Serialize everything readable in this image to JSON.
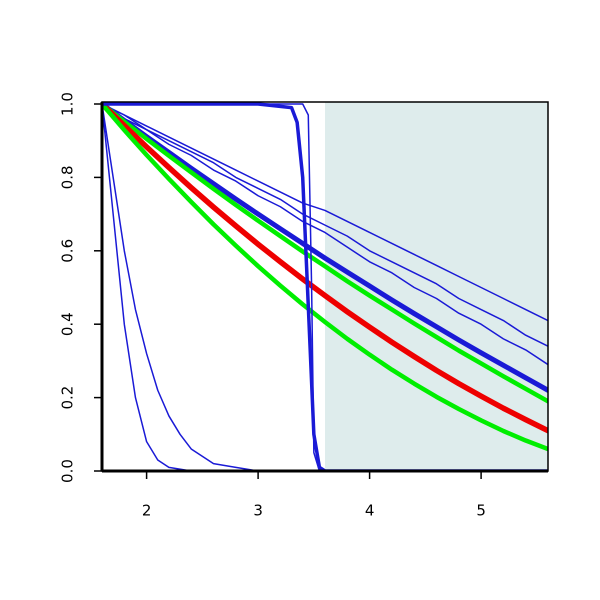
{
  "chart_data": {
    "type": "line",
    "x": [
      1.6,
      1.8,
      2.0,
      2.2,
      2.4,
      2.6,
      2.8,
      3.0,
      3.2,
      3.4,
      3.6,
      3.8,
      4.0,
      4.2,
      4.4,
      4.6,
      4.8,
      5.0,
      5.2,
      5.4,
      5.6
    ],
    "xlim": [
      1.6,
      5.6
    ],
    "xticks": [
      2,
      3,
      4,
      5
    ],
    "ylim": [
      0,
      1
    ],
    "yticks": [
      {
        "value": 0,
        "label": "0.0"
      },
      0.2,
      0.4,
      0.6,
      0.8,
      {
        "value": 1,
        "label": "1.0"
      }
    ],
    "shaded_region": {
      "xlim": [
        3.6,
        5.6
      ],
      "color": "#deecec"
    },
    "series": [
      {
        "color": "#1a1ad6",
        "width": 1.5,
        "values": [
          1,
          0.97,
          0.94,
          0.91,
          0.88,
          0.85,
          0.82,
          0.79,
          0.76,
          0.73,
          0.71,
          0.68,
          0.65,
          0.62,
          0.59,
          0.56,
          0.53,
          0.5,
          0.47,
          0.44,
          0.41
        ]
      },
      {
        "color": "#1a1ad6",
        "width": 1.5,
        "values": [
          1,
          0.97,
          0.93,
          0.9,
          0.87,
          0.84,
          0.8,
          0.77,
          0.74,
          0.7,
          0.67,
          0.64,
          0.6,
          0.57,
          0.54,
          0.51,
          0.47,
          0.44,
          0.41,
          0.37,
          0.34
        ]
      },
      {
        "color": "#1a1ad6",
        "width": 1.5,
        "values": [
          1,
          0.96,
          0.93,
          0.89,
          0.86,
          0.82,
          0.79,
          0.75,
          0.72,
          0.68,
          0.65,
          0.61,
          0.57,
          0.54,
          0.5,
          0.47,
          0.43,
          0.4,
          0.36,
          0.33,
          0.29
        ]
      },
      {
        "color": "#1a1ad6",
        "width": 5,
        "values": [
          1,
          0.955,
          0.911,
          0.868,
          0.825,
          0.783,
          0.741,
          0.7,
          0.66,
          0.62,
          0.58,
          0.542,
          0.504,
          0.466,
          0.429,
          0.393,
          0.357,
          0.322,
          0.288,
          0.254,
          0.22
        ]
      },
      {
        "color": "#00ee00",
        "width": 4.5,
        "values": [
          1,
          0.952,
          0.905,
          0.859,
          0.814,
          0.769,
          0.725,
          0.682,
          0.64,
          0.598,
          0.558,
          0.517,
          0.478,
          0.44,
          0.402,
          0.365,
          0.328,
          0.293,
          0.258,
          0.224,
          0.19
        ]
      },
      {
        "color": "#ee0000",
        "width": 5.5,
        "values": [
          1,
          0.941,
          0.883,
          0.827,
          0.772,
          0.719,
          0.668,
          0.618,
          0.57,
          0.523,
          0.478,
          0.434,
          0.392,
          0.351,
          0.312,
          0.274,
          0.238,
          0.204,
          0.171,
          0.14,
          0.11
        ]
      },
      {
        "color": "#00ee00",
        "width": 4.5,
        "values": [
          1,
          0.929,
          0.861,
          0.796,
          0.733,
          0.672,
          0.614,
          0.558,
          0.505,
          0.454,
          0.406,
          0.36,
          0.317,
          0.276,
          0.238,
          0.202,
          0.169,
          0.138,
          0.109,
          0.083,
          0.06
        ]
      },
      {
        "color": "#1a1ad6",
        "width": 3.5,
        "x": [
          1.6,
          3.0,
          3.3,
          3.35,
          3.4,
          3.45,
          3.5,
          3.55,
          3.6,
          5.6
        ],
        "values": [
          1,
          1,
          0.99,
          0.95,
          0.8,
          0.45,
          0.1,
          0.01,
          0,
          0
        ]
      },
      {
        "color": "#1a1ad6",
        "width": 1.5,
        "x": [
          1.6,
          3.4,
          3.45,
          3.48,
          3.5,
          3.55,
          5.6
        ],
        "values": [
          1,
          1,
          0.97,
          0.5,
          0.05,
          0,
          0
        ]
      },
      {
        "color": "#1a1ad6",
        "width": 1.5,
        "x": [
          1.6,
          1.7,
          1.8,
          1.9,
          2.0,
          2.1,
          2.2,
          2.4,
          5.6
        ],
        "values": [
          1,
          0.7,
          0.4,
          0.2,
          0.08,
          0.03,
          0.01,
          0,
          0
        ]
      },
      {
        "color": "#1a1ad6",
        "width": 1.5,
        "x": [
          1.6,
          1.7,
          1.8,
          1.9,
          2.0,
          2.1,
          2.2,
          2.3,
          2.4,
          2.6,
          2.8,
          3.0,
          5.6
        ],
        "values": [
          1,
          0.8,
          0.6,
          0.44,
          0.32,
          0.22,
          0.15,
          0.1,
          0.06,
          0.02,
          0.01,
          0,
          0
        ]
      }
    ]
  }
}
